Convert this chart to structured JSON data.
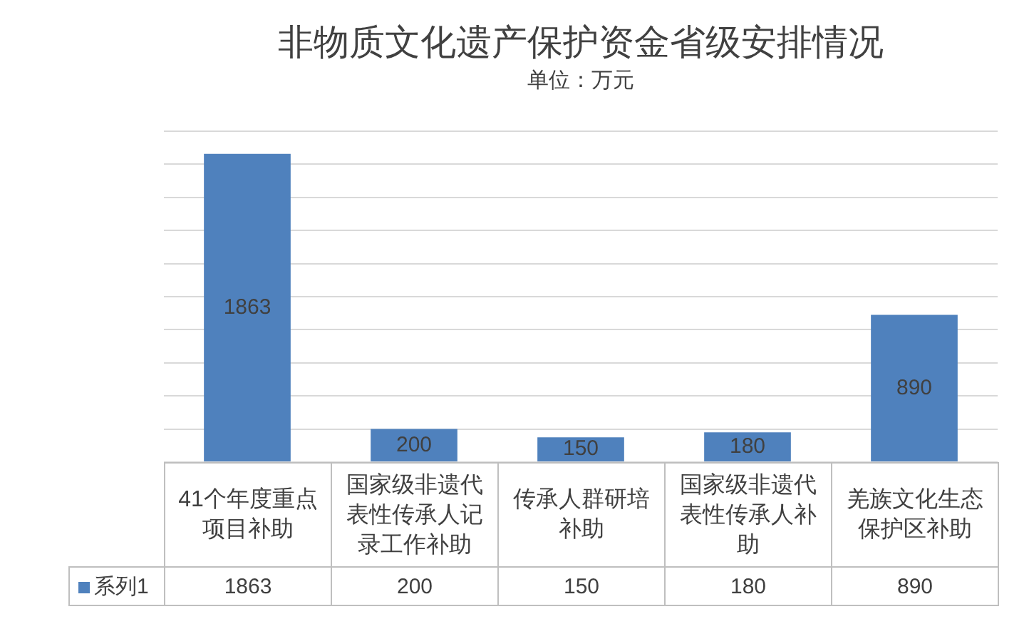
{
  "chart_data": [
    {
      "type": "bar",
      "title": "非物质文化遗产保护资金省级安排情况",
      "subtitle": "单位：万元",
      "categories": [
        "41个年度重点项目补助",
        "国家级非遗代表性传承人记录工作补助",
        "传承人群研培补助",
        "国家级非遗代表性传承人补助",
        "羌族文化生态保护区补助"
      ],
      "series": [
        {
          "color": "#4f81bd",
          "values": [
            1863,
            200,
            150,
            180,
            890
          ],
          "value_labels": [
            "1863",
            "200",
            "150",
            "180",
            "890"
          ]
        }
      ],
      "ylim": [
        0,
        2000
      ],
      "yticks": [
        {
          "value": 0,
          "label": null
        },
        {
          "value": 200,
          "label": null
        },
        {
          "value": 400,
          "label": null
        },
        {
          "value": 600,
          "label": null
        },
        {
          "value": 800,
          "label": null
        },
        {
          "value": 1000,
          "label": null
        },
        {
          "value": 1200,
          "label": null
        },
        {
          "value": 1400,
          "label": null
        },
        {
          "value": 1600,
          "label": null
        },
        {
          "value": 1800,
          "label": null
        },
        {
          "value": 2000,
          "label": null
        }
      ],
      "grid": "y",
      "tick_labels": "x"
    },
    {
      "type": "other",
      "series": [
        {
          "name": "系列1",
          "color": "#4f81bd",
          "values": [
            1863,
            200,
            150,
            180,
            890
          ]
        }
      ],
      "data_labels": true,
      "legend": "left"
    }
  ]
}
